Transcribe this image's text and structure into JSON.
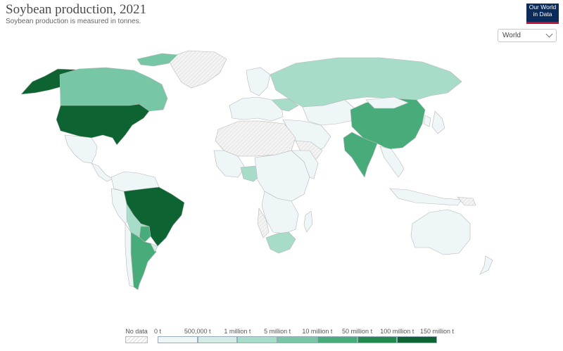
{
  "header": {
    "title": "Soybean production, 2021",
    "subtitle": "Soybean production is measured in tonnes."
  },
  "logo": {
    "line1": "Our World",
    "line2": "in Data"
  },
  "region_selector": {
    "selected": "World",
    "icon": "chevron-down-icon"
  },
  "legend": {
    "no_data_label": "No data",
    "bins": [
      {
        "label": "0 t",
        "color": "#eef6f8"
      },
      {
        "label": "500,000 t",
        "color": "#d3ede6"
      },
      {
        "label": "1 million t",
        "color": "#a7dcc9"
      },
      {
        "label": "5 million t",
        "color": "#77c6a6"
      },
      {
        "label": "10 million t",
        "color": "#47ac79"
      },
      {
        "label": "50 million t",
        "color": "#238a4f"
      },
      {
        "label": "100 million t",
        "color": "#0d6432"
      },
      {
        "label": "150 million t",
        "color": ""
      }
    ]
  },
  "colors": {
    "very_low": "#eef6f8",
    "low": "#d3ede6",
    "mid": "#a7dcc9",
    "mid_high": "#77c6a6",
    "high": "#47ac79",
    "very_high": "#0d6432",
    "no_data": "#e8e8e8"
  },
  "map_regions": [
    {
      "name": "United States",
      "tier": "very_high"
    },
    {
      "name": "Brazil",
      "tier": "very_high"
    },
    {
      "name": "Argentina",
      "tier": "high"
    },
    {
      "name": "China",
      "tier": "high"
    },
    {
      "name": "India",
      "tier": "high"
    },
    {
      "name": "Paraguay",
      "tier": "high"
    },
    {
      "name": "Canada",
      "tier": "mid_high"
    },
    {
      "name": "Russia",
      "tier": "mid"
    },
    {
      "name": "Bolivia",
      "tier": "mid"
    },
    {
      "name": "South Africa",
      "tier": "mid"
    },
    {
      "name": "Nigeria",
      "tier": "mid"
    },
    {
      "name": "Ukraine",
      "tier": "mid"
    },
    {
      "name": "Greenland",
      "tier": "no_data"
    },
    {
      "name": "Sahara",
      "tier": "no_data"
    }
  ]
}
